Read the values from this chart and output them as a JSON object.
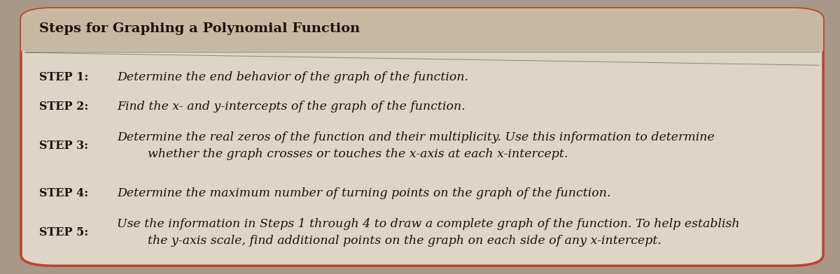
{
  "title": "Steps for Graphing a Polynomial Function",
  "background_outer": "#c8b8a2",
  "background_inner": "#ddd5c5",
  "background_page": "#a89888",
  "border_color": "#c04030",
  "title_color": "#1a1208",
  "text_color": "#1a1208",
  "divider_color": "#888878",
  "steps": [
    {
      "label": "STEP 1:",
      "text": "Determine the end behavior of the graph of the function."
    },
    {
      "label": "STEP 2:",
      "text": "Find the x- and y-intercepts of the graph of the function."
    },
    {
      "label": "STEP 3:",
      "text": "Determine the real zeros of the function and their multiplicity. Use this information to determine\n        whether the graph crosses or touches the x-axis at each x-intercept."
    },
    {
      "label": "STEP 4:",
      "text": "Determine the maximum number of turning points on the graph of the function."
    },
    {
      "label": "STEP 5:",
      "text": "Use the information in Steps 1 through 4 to draw a complete graph of the function. To help establish\n        the y-axis scale, find additional points on the graph on each side of any x-intercept."
    }
  ],
  "label_fontsize": 11.5,
  "text_fontsize": 12.5,
  "title_fontsize": 14
}
